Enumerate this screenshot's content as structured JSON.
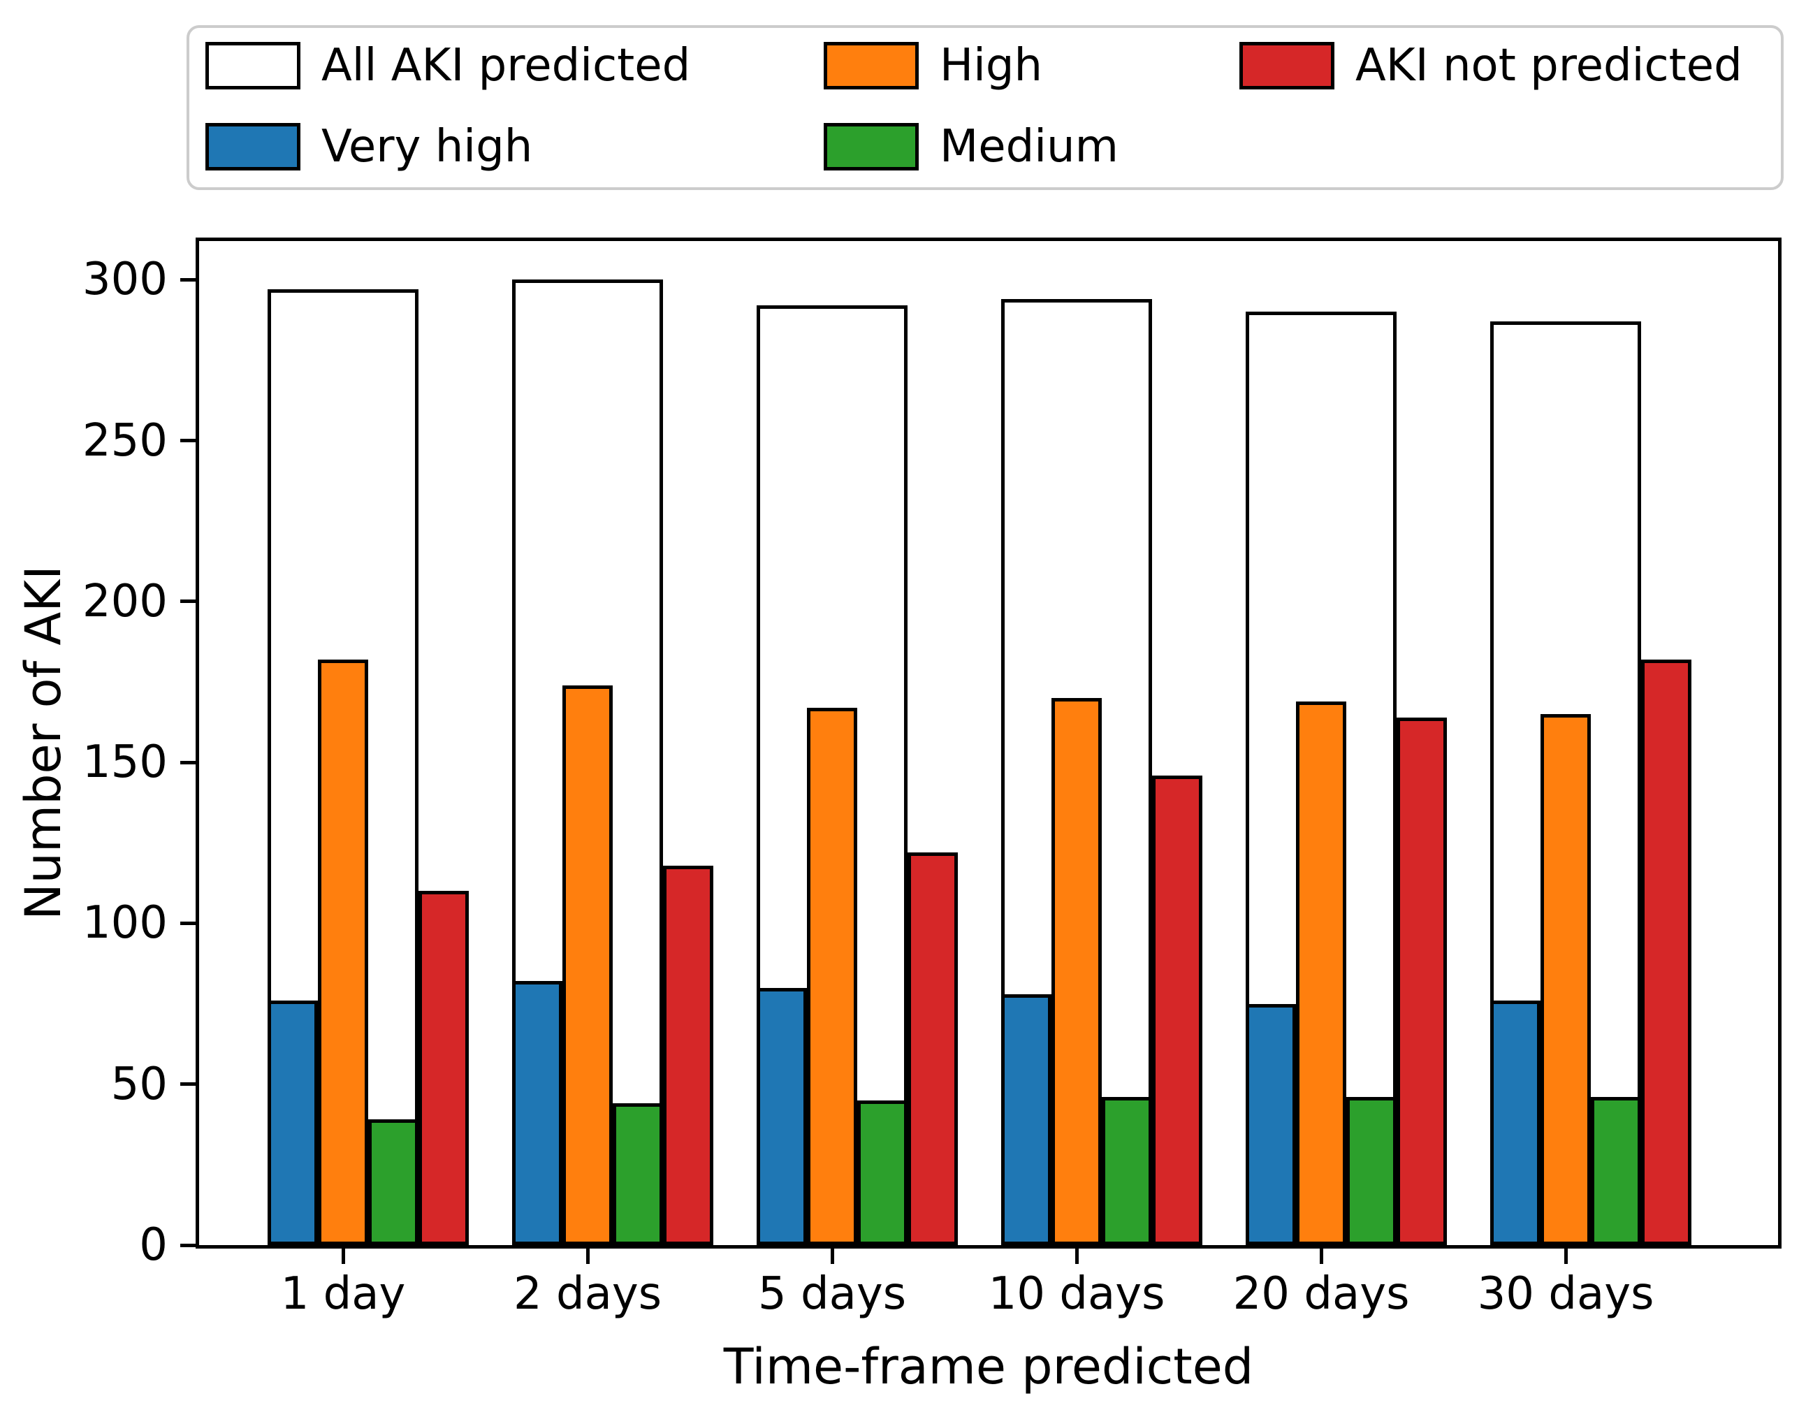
{
  "legend": {
    "items": [
      {
        "label": "All AKI predicted",
        "color": "#ffffff"
      },
      {
        "label": "Very high",
        "color": "#1f77b4"
      },
      {
        "label": "High",
        "color": "#ff7f0e"
      },
      {
        "label": "Medium",
        "color": "#2ca02c"
      },
      {
        "label": "AKI not predicted",
        "color": "#d62728"
      }
    ]
  },
  "chart_data": {
    "type": "bar",
    "title": "",
    "xlabel": "Time-frame predicted",
    "ylabel": "Number of AKI",
    "categories": [
      "1 day",
      "2 days",
      "5 days",
      "10 days",
      "20 days",
      "30 days"
    ],
    "series": [
      {
        "name": "All AKI predicted",
        "color": "#ffffff",
        "values": [
          297,
          300,
          292,
          294,
          290,
          287
        ]
      },
      {
        "name": "Very high",
        "color": "#1f77b4",
        "values": [
          76,
          82,
          80,
          78,
          75,
          76
        ]
      },
      {
        "name": "High",
        "color": "#ff7f0e",
        "values": [
          182,
          174,
          167,
          170,
          169,
          165
        ]
      },
      {
        "name": "Medium",
        "color": "#2ca02c",
        "values": [
          39,
          44,
          45,
          46,
          46,
          46
        ]
      },
      {
        "name": "AKI not predicted",
        "color": "#d62728",
        "values": [
          110,
          118,
          122,
          146,
          164,
          182
        ]
      }
    ],
    "ylim": [
      0,
      312
    ],
    "yticks": [
      0,
      50,
      100,
      150,
      200,
      250,
      300
    ],
    "grid": false,
    "legend_position": "top",
    "bar_edge_color": "#000000"
  }
}
